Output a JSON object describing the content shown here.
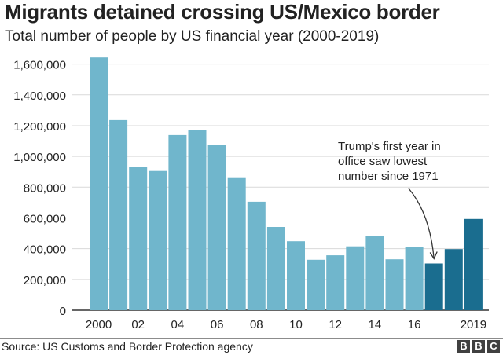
{
  "header": {
    "title": "Migrants detained crossing US/Mexico border",
    "subtitle": "Total number of people by US financial year (2000-2019)"
  },
  "footer": {
    "source": "Source: US Customs and Border Protection agency",
    "logo_letters": [
      "B",
      "B",
      "C"
    ]
  },
  "colors": {
    "bar_light": "#70b6cc",
    "bar_dark": "#1a6d8f",
    "gridline": "#d9d9d9",
    "axis": "#333333"
  },
  "chart_data": {
    "type": "bar",
    "title": "Migrants detained crossing US/Mexico border",
    "subtitle": "Total number of people by US financial year (2000-2019)",
    "xlabel": "",
    "ylabel": "",
    "ylim": [
      0,
      1700000
    ],
    "y_ticks": [
      0,
      200000,
      400000,
      600000,
      800000,
      1000000,
      1200000,
      1400000,
      1600000
    ],
    "y_tick_labels": [
      "0",
      "200,000",
      "400,000",
      "600,000",
      "800,000",
      "1,000,000",
      "1,200,000",
      "1,400,000",
      "1,600,000"
    ],
    "categories": [
      "2000",
      "2001",
      "2002",
      "2003",
      "2004",
      "2005",
      "2006",
      "2007",
      "2008",
      "2009",
      "2010",
      "2011",
      "2012",
      "2013",
      "2014",
      "2015",
      "2016",
      "2017",
      "2018",
      "2019"
    ],
    "x_tick_labels": [
      "2000",
      "",
      "02",
      "",
      "04",
      "",
      "06",
      "",
      "08",
      "",
      "10",
      "",
      "12",
      "",
      "14",
      "",
      "16",
      "",
      "",
      "2019"
    ],
    "values": [
      1643000,
      1236000,
      929000,
      905000,
      1139000,
      1171000,
      1072000,
      859000,
      705000,
      541000,
      448000,
      328000,
      357000,
      415000,
      480000,
      331000,
      409000,
      304000,
      397000,
      593000
    ],
    "highlight_from_index": 17,
    "grid": true,
    "annotation": {
      "lines": [
        "Trump's first year in",
        "office saw lowest",
        "number since 1971"
      ],
      "target_category": "2017"
    }
  }
}
